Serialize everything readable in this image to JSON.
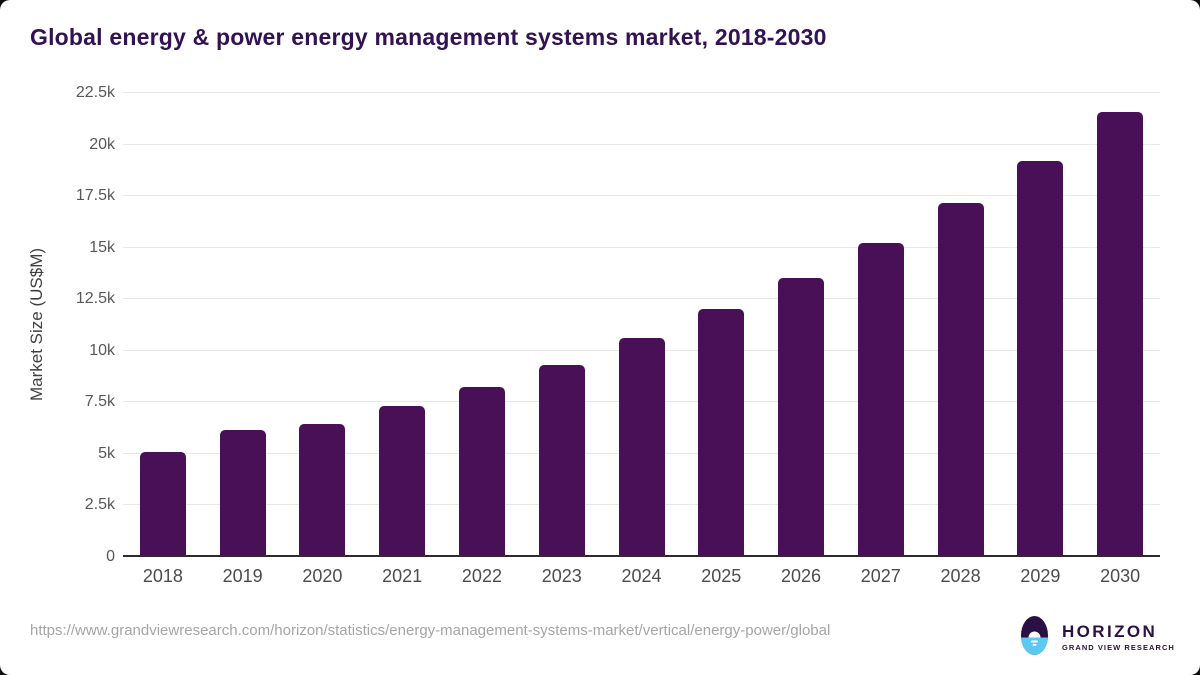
{
  "page": {
    "title": "Global energy & power energy management systems market, 2018-2030",
    "source_url": "https://www.grandviewresearch.com/horizon/statistics/energy-management-systems-market/vertical/energy-power/global"
  },
  "logo": {
    "icon": "horizon-sunrise-icon",
    "name": "HORIZON",
    "subtitle": "GRAND VIEW RESEARCH"
  },
  "colors": {
    "bar": "#4a1057",
    "title": "#321252",
    "grid": "#e8e8e8",
    "axis": "#2b2b2b",
    "tick": "#585858",
    "xlabel": "#4c4c4c",
    "url": "#a5a5a5",
    "logo_purple": "#2b1045",
    "logo_blue": "#5cc9f2"
  },
  "chart_data": {
    "type": "bar",
    "title": "Global energy & power energy management systems market, 2018-2030",
    "categories": [
      "2018",
      "2019",
      "2020",
      "2021",
      "2022",
      "2023",
      "2024",
      "2025",
      "2026",
      "2027",
      "2028",
      "2029",
      "2030"
    ],
    "values": [
      5050,
      6100,
      6400,
      7250,
      8200,
      9250,
      10550,
      12000,
      13500,
      15200,
      17100,
      19150,
      21550
    ],
    "xlabel": "",
    "ylabel": "Market Size (US$M)",
    "ylim": [
      0,
      22500
    ],
    "ytick_step": 2500,
    "ytick_labels": [
      "0",
      "2.5k",
      "5k",
      "7.5k",
      "10k",
      "12.5k",
      "15k",
      "17.5k",
      "20k",
      "22.5k"
    ],
    "grid": true,
    "legend": "none",
    "bar_color": "#4a1057"
  }
}
